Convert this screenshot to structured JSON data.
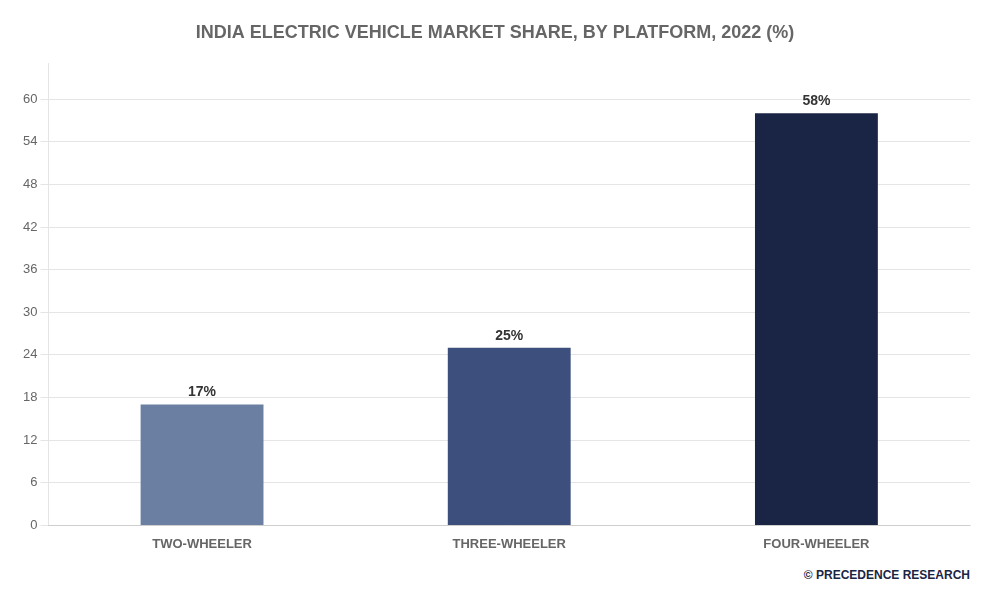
{
  "chart_data": {
    "type": "bar",
    "title": "INDIA ELECTRIC VEHICLE MARKET SHARE, BY PLATFORM, 2022 (%)",
    "categories": [
      "TWO-WHEELER",
      "THREE-WHEELER",
      "FOUR-WHEELER"
    ],
    "values": [
      17,
      25,
      58
    ],
    "value_labels": [
      "17%",
      "25%",
      "58%"
    ],
    "data_labels": true,
    "colors": [
      "#6b7fa3",
      "#3d4f7c",
      "#1a2444"
    ],
    "ylim": [
      0,
      65
    ],
    "yticks": [
      0,
      6,
      12,
      18,
      24,
      30,
      36,
      42,
      48,
      54,
      60
    ],
    "grid": true,
    "annotations": [
      "© PRECEDENCE RESEARCH"
    ]
  }
}
